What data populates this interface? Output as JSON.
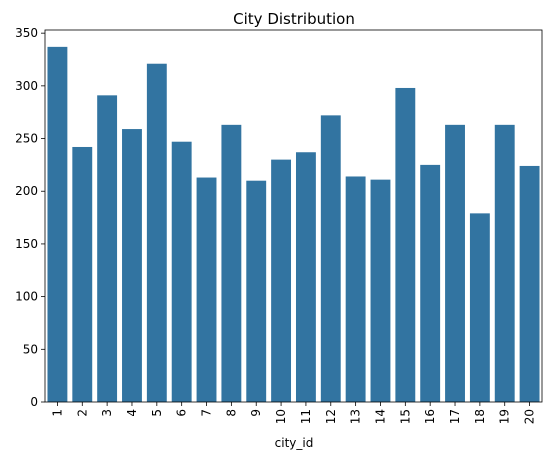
{
  "chart_data": {
    "type": "bar",
    "title": "City Distribution",
    "xlabel": "city_id",
    "ylabel": "",
    "categories": [
      "1",
      "2",
      "3",
      "4",
      "5",
      "6",
      "7",
      "8",
      "9",
      "10",
      "11",
      "12",
      "13",
      "14",
      "15",
      "16",
      "17",
      "18",
      "19",
      "20"
    ],
    "values": [
      337,
      242,
      291,
      259,
      321,
      247,
      213,
      263,
      210,
      230,
      237,
      272,
      214,
      211,
      298,
      225,
      263,
      179,
      263,
      224
    ],
    "ylim": [
      0,
      353
    ],
    "yticks": [
      0,
      50,
      100,
      150,
      200,
      250,
      300,
      350
    ],
    "bar_color": "#3274a1",
    "grid": false,
    "xtick_rotation": "vertical"
  }
}
